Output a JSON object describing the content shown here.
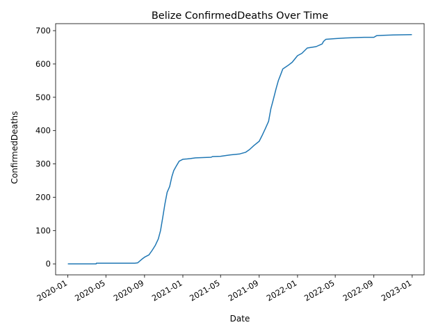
{
  "chart_data": {
    "type": "line",
    "title": "Belize  ConfirmedDeaths Over Time",
    "xlabel": "Date",
    "ylabel": "ConfirmedDeaths",
    "x_ticks": [
      "2020-01",
      "2020-05",
      "2020-09",
      "2021-01",
      "2021-05",
      "2021-09",
      "2022-01",
      "2022-05",
      "2022-09",
      "2023-01"
    ],
    "y_ticks": [
      0,
      100,
      200,
      300,
      400,
      500,
      600,
      700
    ],
    "ylim": [
      -33,
      721
    ],
    "xlim": [
      "2019-11-23",
      "2023-02-08"
    ],
    "grid": false,
    "line_color": "#1f77b4",
    "series": [
      {
        "x": [
          "2020-01-01",
          "2020-03-31",
          "2020-04-01",
          "2020-08-01",
          "2020-08-10",
          "2020-08-20",
          "2020-08-25",
          "2020-09-01",
          "2020-09-15",
          "2020-09-25",
          "2020-10-05",
          "2020-10-15",
          "2020-10-22",
          "2020-10-29",
          "2020-11-05",
          "2020-11-12",
          "2020-11-20",
          "2020-11-27",
          "2020-12-03",
          "2020-12-10",
          "2020-12-20",
          "2021-01-01",
          "2021-01-15",
          "2021-01-25",
          "2021-02-10",
          "2021-04-01",
          "2021-04-05",
          "2021-05-01",
          "2021-06-01",
          "2021-07-01",
          "2021-07-20",
          "2021-08-01",
          "2021-08-15",
          "2021-09-01",
          "2021-09-10",
          "2021-09-20",
          "2021-10-01",
          "2021-10-08",
          "2021-10-15",
          "2021-10-25",
          "2021-11-01",
          "2021-11-08",
          "2021-11-15",
          "2021-12-01",
          "2021-12-15",
          "2022-01-01",
          "2022-01-15",
          "2022-02-01",
          "2022-03-01",
          "2022-03-20",
          "2022-03-25",
          "2022-04-01",
          "2022-05-01",
          "2022-06-01",
          "2022-08-01",
          "2022-09-01",
          "2022-09-10",
          "2022-10-01",
          "2022-11-01",
          "2022-12-31"
        ],
        "values": [
          0,
          0,
          2,
          2,
          3,
          11,
          15,
          20,
          27,
          40,
          55,
          75,
          100,
          140,
          180,
          215,
          232,
          262,
          280,
          292,
          308,
          314,
          315,
          316,
          318,
          320,
          322,
          323,
          327,
          330,
          335,
          343,
          355,
          368,
          385,
          405,
          428,
          465,
          490,
          527,
          550,
          567,
          585,
          595,
          605,
          625,
          632,
          648,
          652,
          660,
          668,
          674,
          676,
          678,
          680,
          680,
          685,
          686,
          687,
          688
        ]
      }
    ]
  }
}
